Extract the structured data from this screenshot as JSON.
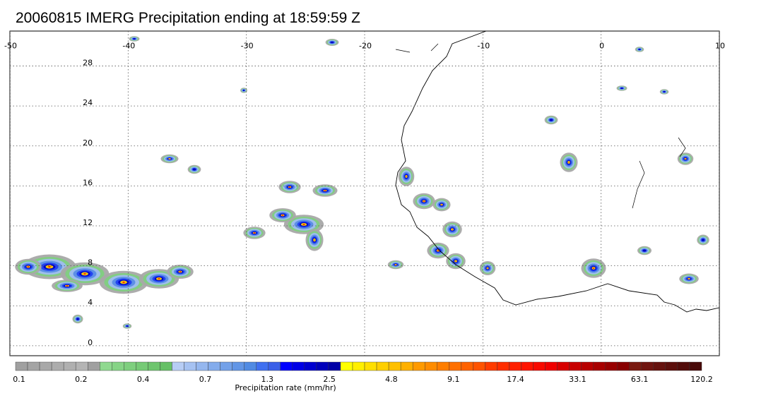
{
  "title": "20060815 IMERG Precipitation ending at 18:59:59 Z",
  "map": {
    "lon_range": [
      -50,
      10
    ],
    "lat_range": [
      -1,
      31.5
    ],
    "lon_ticks": [
      "-50",
      "-40",
      "-30",
      "-20",
      "-10",
      "0",
      "10"
    ],
    "lat_ticks": [
      "0",
      "4",
      "8",
      "12",
      "16",
      "20",
      "24",
      "28"
    ],
    "grid": "dotted"
  },
  "colorbar": {
    "label": "Precipitation rate (mm/hr)",
    "tick_labels": [
      "0.1",
      "0.2",
      "0.4",
      "0.7",
      "1.3",
      "2.5",
      "4.8",
      "9.1",
      "17.4",
      "33.1",
      "63.1",
      "120.2"
    ],
    "colors": [
      "#a0a0a0",
      "#a4a4a4",
      "#a8a8a8",
      "#acacac",
      "#b0b0b0",
      "#b4b4b4",
      "#a0a0a0",
      "#8fd98f",
      "#86d486",
      "#7ecf7e",
      "#76ca76",
      "#6ec56e",
      "#66c066",
      "#b7cdf5",
      "#a6c2f2",
      "#95b7ef",
      "#84acec",
      "#73a1e9",
      "#6296e6",
      "#518be3",
      "#4070f0",
      "#3a5fe8",
      "#0000ff",
      "#0000e6",
      "#0000d0",
      "#0000bb",
      "#0000a6",
      "#ffff00",
      "#ffef00",
      "#ffdf00",
      "#ffcf00",
      "#ffc000",
      "#ffb000",
      "#ff9a00",
      "#ff8c00",
      "#ff7e00",
      "#ff7000",
      "#ff6200",
      "#ff5400",
      "#ff3c00",
      "#ff2e00",
      "#ff2000",
      "#ff1400",
      "#f80a00",
      "#f00000",
      "#d80000",
      "#c80000",
      "#b80000",
      "#a80000",
      "#980000",
      "#880000",
      "#7a1a10",
      "#701510",
      "#66120e",
      "#5c0f0c",
      "#520c0a",
      "#480908"
    ]
  }
}
